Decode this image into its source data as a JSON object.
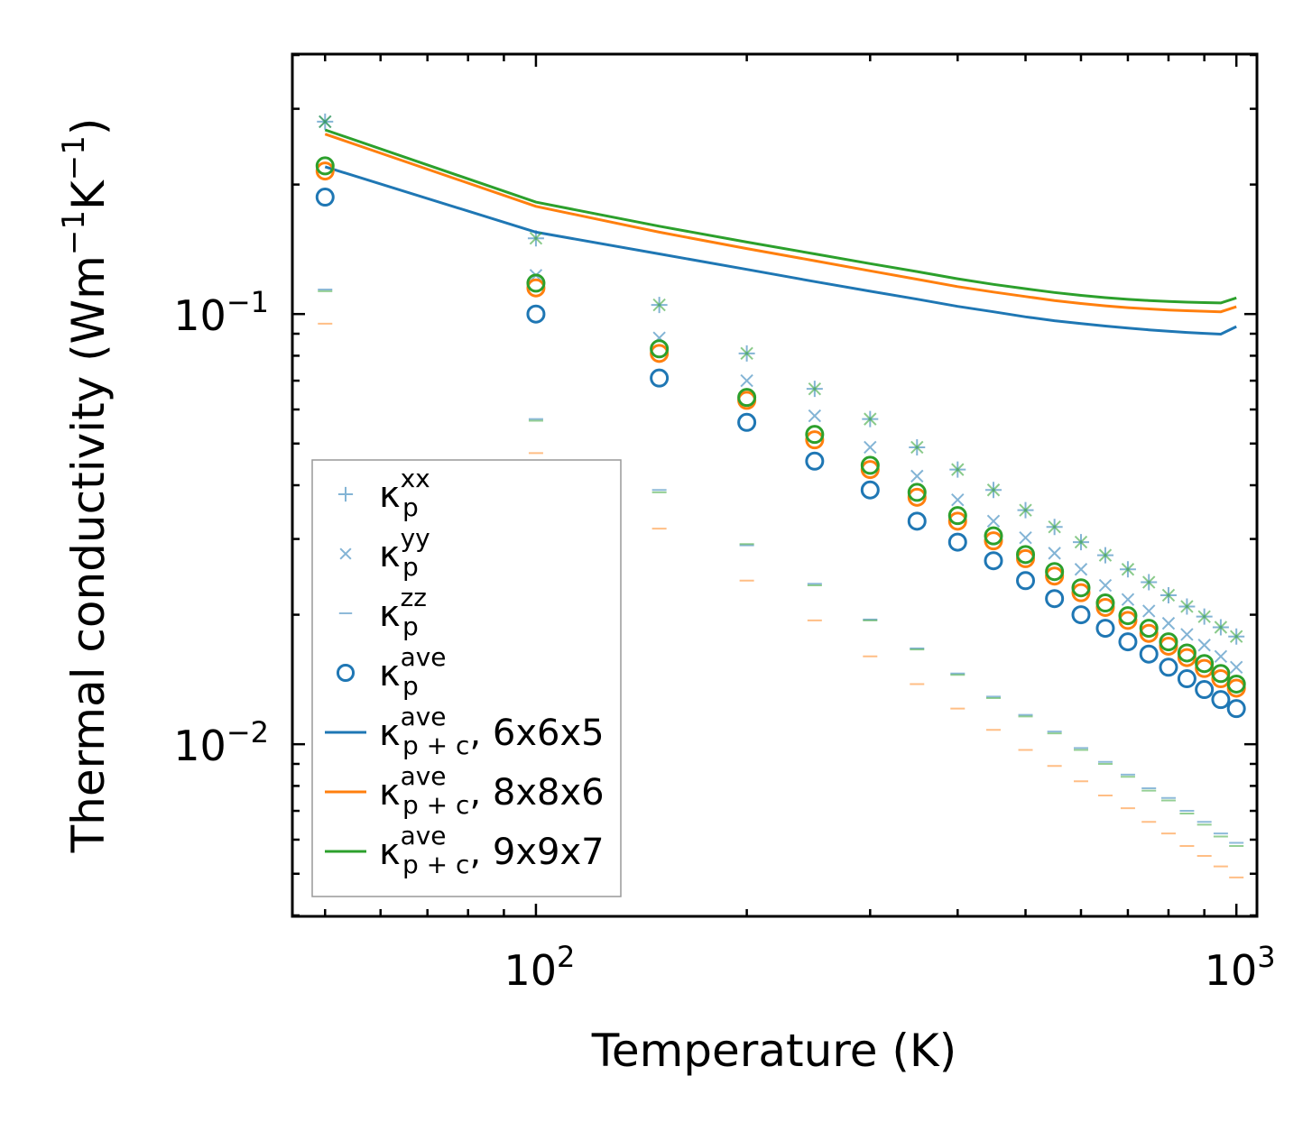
{
  "chart_data": {
    "type": "scatter",
    "title": "",
    "xlabel": "Temperature (K)",
    "ylabel_main": "Thermal conductivity (Wm",
    "ylabel_sup1": "−1",
    "ylabel_mid": "K",
    "ylabel_sup2": "−1",
    "ylabel_end": ")",
    "xscale": "log",
    "yscale": "log",
    "xlim": [
      44.9,
      1070
    ],
    "ylim": [
      0.00398,
      0.402
    ],
    "x_major_ticks": [
      {
        "value": 100,
        "base": "10",
        "exp": "2"
      },
      {
        "value": 1000,
        "base": "10",
        "exp": "3"
      }
    ],
    "y_major_ticks": [
      {
        "value": 0.01,
        "base": "10",
        "exp": "−2"
      },
      {
        "value": 0.1,
        "base": "10",
        "exp": "−1"
      }
    ],
    "x": [
      50,
      100,
      150,
      200,
      250,
      300,
      350,
      400,
      450,
      500,
      550,
      600,
      650,
      700,
      750,
      800,
      850,
      900,
      950,
      1000
    ],
    "series": [
      {
        "name": "kp_xx",
        "marker": "plus",
        "color": "#1f77b4",
        "values": [
          0.28,
          0.15,
          0.105,
          0.081,
          0.067,
          0.057,
          0.049,
          0.0435,
          0.039,
          0.035,
          0.032,
          0.0295,
          0.0275,
          0.0255,
          0.0238,
          0.0222,
          0.0209,
          0.0198,
          0.0187,
          0.0178
        ]
      },
      {
        "name": "kp_yy",
        "marker": "x",
        "color": "#1f77b4",
        "values": [
          0.28,
          0.123,
          0.088,
          0.07,
          0.058,
          0.049,
          0.042,
          0.037,
          0.033,
          0.0302,
          0.0278,
          0.0255,
          0.0234,
          0.0217,
          0.0204,
          0.0191,
          0.018,
          0.017,
          0.016,
          0.0151
        ]
      },
      {
        "name": "kp_zz",
        "marker": "dash",
        "color": "#1f77b4",
        "values": [
          0.114,
          0.057,
          0.039,
          0.029,
          0.0236,
          0.0195,
          0.0167,
          0.0146,
          0.0129,
          0.0117,
          0.0107,
          0.0098,
          0.0091,
          0.0085,
          0.0079,
          0.0075,
          0.007,
          0.0066,
          0.0062,
          0.0059
        ]
      },
      {
        "name": "kp_ave",
        "marker": "circle",
        "color": "#1f77b4",
        "values": [
          0.187,
          0.1,
          0.071,
          0.056,
          0.0455,
          0.039,
          0.033,
          0.0295,
          0.0267,
          0.024,
          0.0218,
          0.02,
          0.0186,
          0.0173,
          0.0162,
          0.0151,
          0.0142,
          0.0134,
          0.0127,
          0.0121
        ]
      },
      {
        "name": "kzz_8x8x6",
        "marker": "dash",
        "color": "#ff7f0e",
        "values": [
          0.095,
          0.0475,
          0.0317,
          0.024,
          0.0194,
          0.016,
          0.0138,
          0.0121,
          0.0108,
          0.0097,
          0.0089,
          0.0082,
          0.0076,
          0.0071,
          0.0066,
          0.0062,
          0.0058,
          0.0055,
          0.0052,
          0.0049
        ]
      },
      {
        "name": "kave_8x8x6",
        "marker": "circle",
        "color": "#ff7f0e",
        "values": [
          0.215,
          0.115,
          0.081,
          0.063,
          0.051,
          0.0435,
          0.0375,
          0.033,
          0.0297,
          0.027,
          0.0246,
          0.0225,
          0.0208,
          0.0194,
          0.0181,
          0.0169,
          0.0159,
          0.015,
          0.0142,
          0.0135
        ]
      },
      {
        "name": "kxx_9x9x7",
        "marker": "x",
        "color": "#2ca02c",
        "values": [
          0.28,
          0.15,
          0.105,
          0.081,
          0.067,
          0.057,
          0.049,
          0.0435,
          0.039,
          0.035,
          0.032,
          0.0295,
          0.0275,
          0.0255,
          0.0238,
          0.0222,
          0.0209,
          0.0198,
          0.0187,
          0.0178
        ]
      },
      {
        "name": "kzz_9x9x7",
        "marker": "dash",
        "color": "#2ca02c",
        "values": [
          0.113,
          0.0565,
          0.0385,
          0.0292,
          0.0234,
          0.0194,
          0.0166,
          0.0145,
          0.0128,
          0.0116,
          0.0106,
          0.0097,
          0.009,
          0.0084,
          0.0078,
          0.0074,
          0.0069,
          0.0065,
          0.0061,
          0.0058
        ]
      },
      {
        "name": "kave_9x9x7",
        "marker": "circle",
        "color": "#2ca02c",
        "values": [
          0.221,
          0.118,
          0.083,
          0.064,
          0.0525,
          0.0445,
          0.0385,
          0.034,
          0.0305,
          0.0276,
          0.0252,
          0.0231,
          0.0213,
          0.0199,
          0.0186,
          0.0173,
          0.0163,
          0.0154,
          0.0146,
          0.0138
        ]
      },
      {
        "name": "kpc_ave_6x6x5",
        "marker": "line",
        "color": "#1f77b4",
        "values": [
          0.22,
          0.155,
          0.138,
          0.127,
          0.119,
          0.113,
          0.1083,
          0.1042,
          0.1012,
          0.0985,
          0.0965,
          0.095,
          0.0938,
          0.0928,
          0.0919,
          0.0912,
          0.0906,
          0.0902,
          0.0898,
          0.0935
        ]
      },
      {
        "name": "kpc_ave_8x8x6",
        "marker": "line",
        "color": "#ff7f0e",
        "values": [
          0.262,
          0.178,
          0.155,
          0.142,
          0.133,
          0.126,
          0.1205,
          0.1158,
          0.1125,
          0.1098,
          0.1075,
          0.1058,
          0.1045,
          0.1035,
          0.1028,
          0.1022,
          0.1018,
          0.1015,
          0.1012,
          0.104
        ]
      },
      {
        "name": "kpc_ave_9x9x7",
        "marker": "line",
        "color": "#2ca02c",
        "values": [
          0.268,
          0.182,
          0.16,
          0.147,
          0.138,
          0.131,
          0.1255,
          0.1208,
          0.1172,
          0.1145,
          0.1122,
          0.1105,
          0.1092,
          0.1082,
          0.1075,
          0.107,
          0.1066,
          0.1063,
          0.1061,
          0.109
        ]
      }
    ],
    "legend_position": "lower-left",
    "legend": [
      {
        "kind": "plus",
        "color": "#1f77b4",
        "base": "κ",
        "sup": "xx",
        "sub": "p",
        "suffix": ""
      },
      {
        "kind": "x",
        "color": "#1f77b4",
        "base": "κ",
        "sup": "yy",
        "sub": "p",
        "suffix": ""
      },
      {
        "kind": "dash",
        "color": "#1f77b4",
        "base": "κ",
        "sup": "zz",
        "sub": "p",
        "suffix": ""
      },
      {
        "kind": "circle",
        "color": "#1f77b4",
        "base": "κ",
        "sup": "ave",
        "sub": "p",
        "suffix": ""
      },
      {
        "kind": "line",
        "color": "#1f77b4",
        "base": "κ",
        "sup": "ave",
        "sub": "p + c",
        "suffix": ", 6x6x5"
      },
      {
        "kind": "line",
        "color": "#ff7f0e",
        "base": "κ",
        "sup": "ave",
        "sub": "p + c",
        "suffix": ", 8x8x6"
      },
      {
        "kind": "line",
        "color": "#2ca02c",
        "base": "κ",
        "sup": "ave",
        "sub": "p + c",
        "suffix": ", 9x9x7"
      }
    ]
  }
}
